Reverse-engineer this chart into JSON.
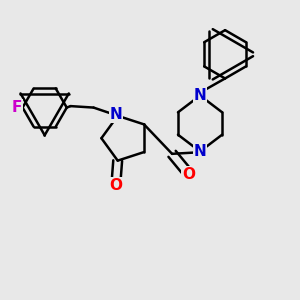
{
  "bg_color": "#e8e8e8",
  "bond_color": "#000000",
  "N_color": "#0000cc",
  "O_color": "#ff0000",
  "F_color": "#cc00cc",
  "line_width": 1.8,
  "font_size": 11,
  "figsize": [
    3.0,
    3.0
  ],
  "dpi": 100,
  "xlim": [
    0.0,
    1.0
  ],
  "ylim": [
    0.0,
    1.0
  ]
}
